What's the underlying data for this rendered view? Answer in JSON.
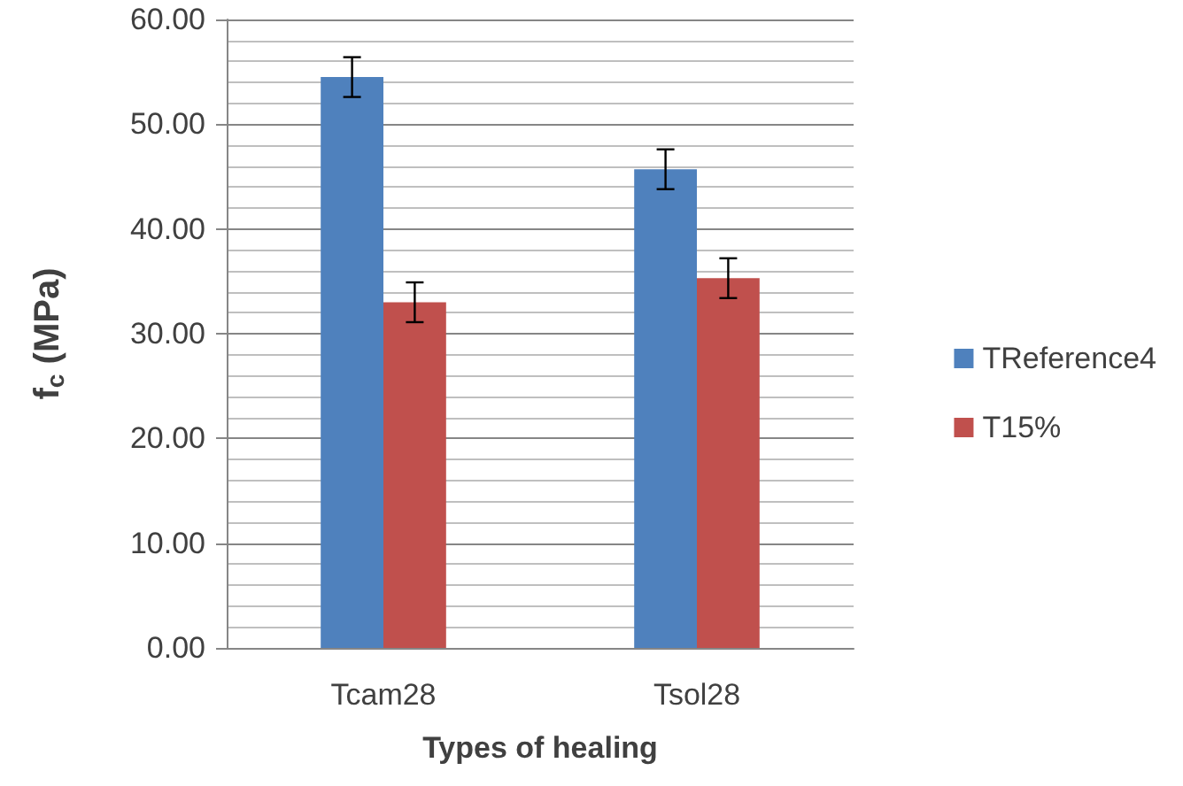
{
  "chart_data": {
    "type": "bar",
    "xlabel": "Types of healing",
    "ylabel": "f$_{c}$ (MPa)",
    "categories": [
      "Tcam28",
      "Tsol28"
    ],
    "series": [
      {
        "name": "TReference4",
        "color": "#4f81bd",
        "values": [
          54.5,
          45.7
        ],
        "errors": [
          1.9,
          1.9
        ]
      },
      {
        "name": "T15%",
        "color": "#c0504d",
        "values": [
          33.0,
          35.3
        ],
        "errors": [
          1.9,
          1.9
        ]
      }
    ],
    "ylim": [
      0,
      60
    ],
    "yticks": [
      {
        "value": 0,
        "label": "0.00"
      },
      {
        "value": 10,
        "label": "10.00"
      },
      {
        "value": 20,
        "label": "20.00"
      },
      {
        "value": 30,
        "label": "30.00"
      },
      {
        "value": 40,
        "label": "40.00"
      },
      {
        "value": 50,
        "label": "50.00"
      },
      {
        "value": 60,
        "label": "60.00"
      }
    ],
    "grid": true,
    "legend": "right"
  }
}
